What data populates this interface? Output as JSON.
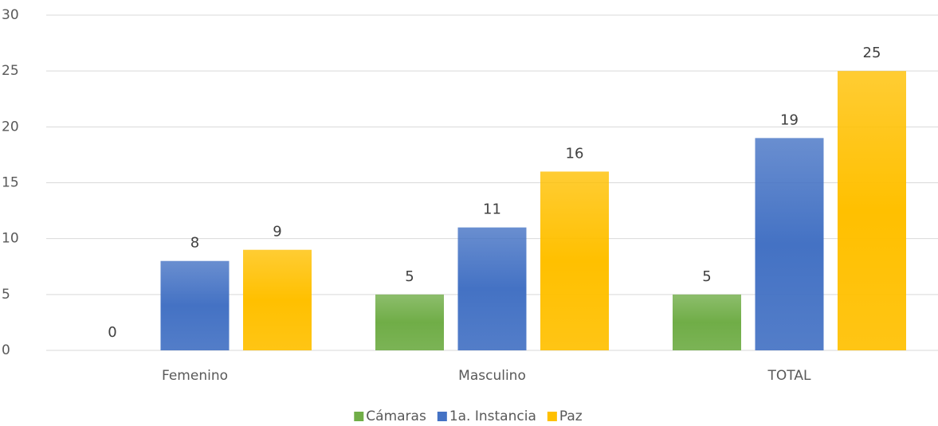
{
  "chart_data": {
    "type": "bar",
    "categories": [
      "Femenino",
      "Masculino",
      "TOTAL"
    ],
    "series": [
      {
        "name": "Cámaras",
        "color": "#70ad47",
        "values": [
          0,
          5,
          5
        ]
      },
      {
        "name": "1a. Instancia",
        "color": "#4472c4",
        "values": [
          8,
          11,
          19
        ]
      },
      {
        "name": "Paz",
        "color": "#ffc000",
        "values": [
          9,
          16,
          25
        ]
      }
    ],
    "ylim": [
      0,
      30
    ],
    "yticks": [
      0,
      5,
      10,
      15,
      20,
      25,
      30
    ],
    "grid": true,
    "legend": "bottom"
  }
}
